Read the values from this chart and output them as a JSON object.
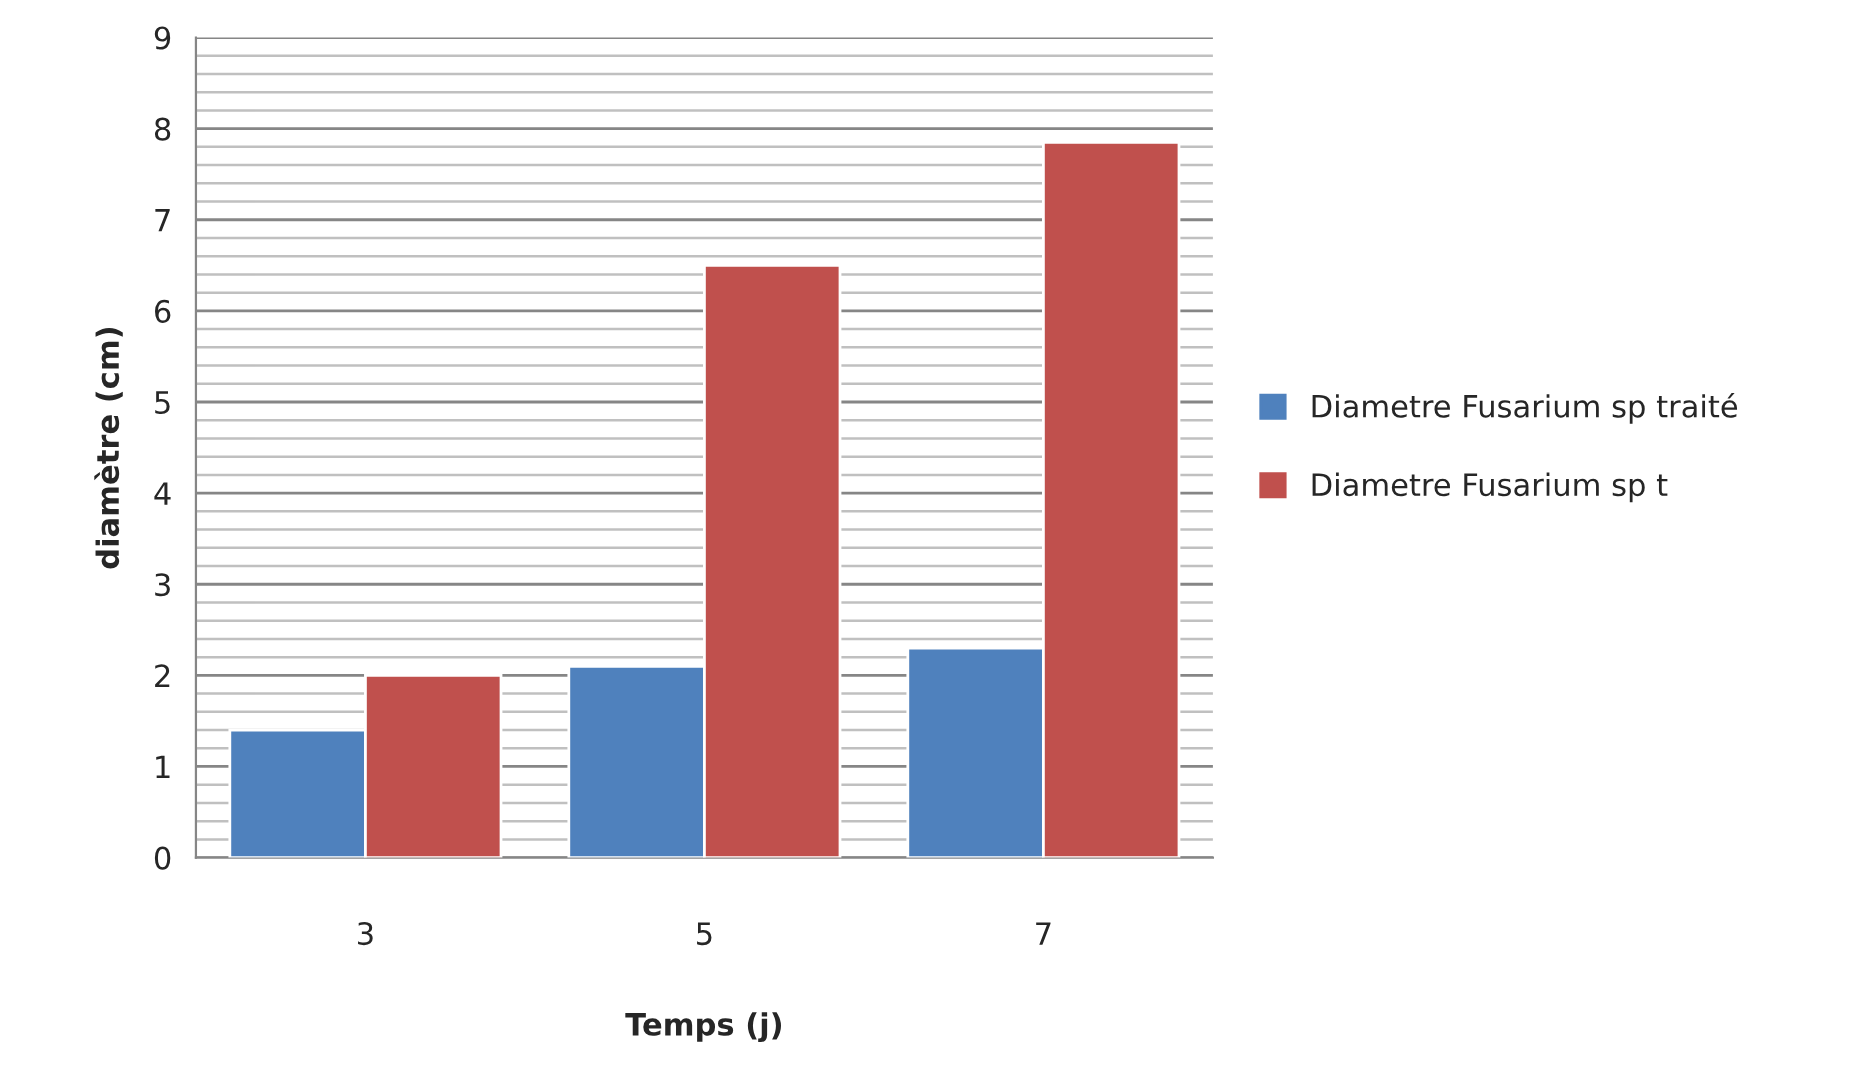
{
  "chart_data": {
    "type": "bar",
    "xlabel": "Temps (j)",
    "ylabel": "diamètre (cm)",
    "categories": [
      "3",
      "5",
      "7"
    ],
    "series": [
      {
        "name": "Diametre Fusarium sp traité",
        "color": "#4f81bd",
        "values": [
          1.4,
          2.1,
          2.3
        ]
      },
      {
        "name": "Diametre Fusarium sp t",
        "color": "#c0504d",
        "values": [
          2.0,
          6.5,
          7.85
        ]
      }
    ],
    "ylim": [
      0,
      9
    ],
    "yticks": [
      0,
      1,
      2,
      3,
      4,
      5,
      6,
      7,
      8,
      9
    ],
    "grid": "y",
    "legend": "right"
  }
}
